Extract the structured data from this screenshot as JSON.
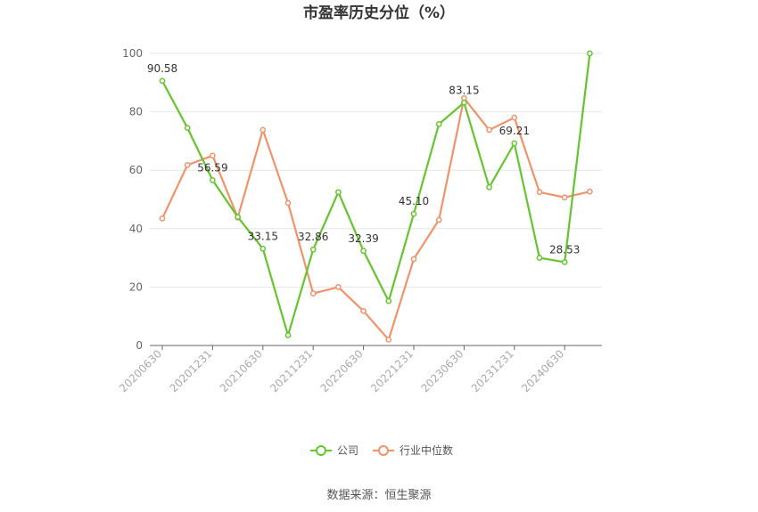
{
  "chart_data": {
    "type": "line",
    "title": "市盈率历史分位（%）",
    "x": [
      "20200630",
      "20200930",
      "20201231",
      "20210331",
      "20210630",
      "20210930",
      "20211231",
      "20220331",
      "20220630",
      "20220930",
      "20221231",
      "20230331",
      "20230630",
      "20230930",
      "20231231",
      "20240331",
      "20240630",
      "20240930"
    ],
    "xtick_labels": [
      "20200630",
      "20201231",
      "20210630",
      "20211231",
      "20220630",
      "20221231",
      "20230630",
      "20231231",
      "20240630"
    ],
    "ylim": [
      0,
      100
    ],
    "yticks": [
      0,
      20,
      40,
      60,
      80,
      100
    ],
    "grid": "horizontal",
    "legend_position": "bottom",
    "series": [
      {
        "name": "公司",
        "color": "#66c42f",
        "values": [
          90.58,
          74.5,
          56.59,
          44,
          33.15,
          3.5,
          32.86,
          52.5,
          32.39,
          15.2,
          45.1,
          75.8,
          83.15,
          54.2,
          69.21,
          30,
          28.53,
          100
        ],
        "labels": {
          "0": "90.58",
          "2": "56.59",
          "4": "33.15",
          "6": "32.86",
          "8": "32.39",
          "10": "45.10",
          "12": "83.15",
          "14": "69.21",
          "16": "28.53"
        }
      },
      {
        "name": "行业中位数",
        "color": "#f0936a",
        "values": [
          43.5,
          61.8,
          65,
          43.8,
          73.8,
          48.8,
          17.8,
          20,
          11.8,
          2,
          29.6,
          43,
          84.7,
          73.8,
          78,
          52.5,
          50.7,
          52.7
        ]
      }
    ]
  },
  "source_text": "数据来源：恒生聚源"
}
